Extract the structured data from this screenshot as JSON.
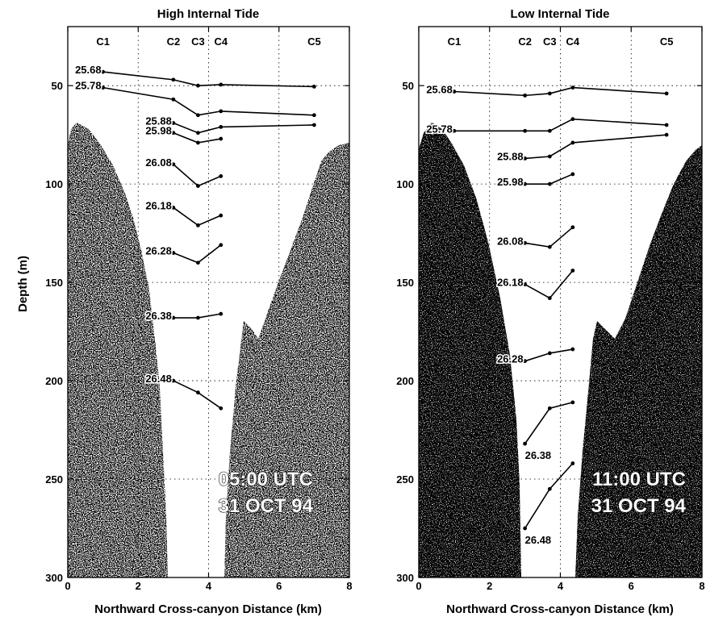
{
  "figure": {
    "ylabel": "Depth (m)"
  },
  "chart_data": [
    {
      "type": "line",
      "title": "High Internal Tide",
      "xlabel": "Northward Cross-canyon Distance (km)",
      "ylabel": "Depth (m)",
      "xlim": [
        0,
        8
      ],
      "ylim": [
        300,
        20
      ],
      "y_inverted": true,
      "xticks": [
        0,
        2,
        4,
        6,
        8
      ],
      "yticks": [
        50,
        100,
        150,
        200,
        250,
        300
      ],
      "grid": "dotted",
      "stations": [
        {
          "name": "C1",
          "x": 1.0
        },
        {
          "name": "C2",
          "x": 3.0
        },
        {
          "name": "C3",
          "x": 3.7
        },
        {
          "name": "C4",
          "x": 4.35
        },
        {
          "name": "C5",
          "x": 7.0
        }
      ],
      "annotation": [
        "05:00 UTC",
        "31 OCT 94"
      ],
      "series": [
        {
          "name": "25.68",
          "x": [
            1.0,
            3.0,
            3.7,
            4.35,
            7.0
          ],
          "y": [
            43,
            47,
            50,
            49.5,
            50.5
          ]
        },
        {
          "name": "25.78",
          "x": [
            1.0,
            3.0,
            3.7,
            4.35,
            7.0
          ],
          "y": [
            51,
            57,
            65,
            63,
            65
          ]
        },
        {
          "name": "25.88",
          "x": [
            3.0,
            3.7,
            4.35,
            7.0
          ],
          "y": [
            69,
            74,
            71,
            70
          ]
        },
        {
          "name": "25.98",
          "x": [
            3.0,
            3.7,
            4.35
          ],
          "y": [
            74,
            79,
            77
          ]
        },
        {
          "name": "26.08",
          "x": [
            3.0,
            3.7,
            4.35
          ],
          "y": [
            90,
            101,
            96
          ]
        },
        {
          "name": "26.18",
          "x": [
            3.0,
            3.7,
            4.35
          ],
          "y": [
            112,
            121,
            116
          ]
        },
        {
          "name": "26.28",
          "x": [
            3.0,
            3.7,
            4.35
          ],
          "y": [
            135,
            140,
            131
          ]
        },
        {
          "name": "26.38",
          "x": [
            3.0,
            3.7,
            4.35
          ],
          "y": [
            168,
            168,
            166
          ]
        },
        {
          "name": "26.48",
          "x": [
            3.0,
            3.7,
            4.35
          ],
          "y": [
            200,
            206,
            214
          ]
        }
      ]
    },
    {
      "type": "line",
      "title": "Low Internal Tide",
      "xlabel": "Northward Cross-canyon Distance (km)",
      "ylabel": "",
      "xlim": [
        0,
        8
      ],
      "ylim": [
        300,
        20
      ],
      "y_inverted": true,
      "xticks": [
        0,
        2,
        4,
        6,
        8
      ],
      "yticks": [
        50,
        100,
        150,
        200,
        250,
        300
      ],
      "grid": "dotted",
      "stations": [
        {
          "name": "C1",
          "x": 1.0
        },
        {
          "name": "C2",
          "x": 3.0
        },
        {
          "name": "C3",
          "x": 3.7
        },
        {
          "name": "C4",
          "x": 4.35
        },
        {
          "name": "C5",
          "x": 7.0
        }
      ],
      "annotation": [
        "11:00 UTC",
        "31 OCT 94"
      ],
      "series": [
        {
          "name": "25.68",
          "x": [
            1.0,
            3.0,
            3.7,
            4.35,
            7.0
          ],
          "y": [
            53,
            55,
            54,
            51,
            54
          ]
        },
        {
          "name": "25.78",
          "x": [
            1.0,
            3.0,
            3.7,
            4.35,
            7.0
          ],
          "y": [
            73,
            73,
            73,
            67,
            70
          ]
        },
        {
          "name": "25.88",
          "x": [
            3.0,
            3.7,
            4.35,
            7.0
          ],
          "y": [
            87,
            86,
            79,
            75
          ]
        },
        {
          "name": "25.98",
          "x": [
            3.0,
            3.7,
            4.35
          ],
          "y": [
            100,
            100,
            95
          ]
        },
        {
          "name": "26.08",
          "x": [
            3.0,
            3.7,
            4.35
          ],
          "y": [
            130,
            132,
            122
          ]
        },
        {
          "name": "26.18",
          "x": [
            3.0,
            3.7,
            4.35
          ],
          "y": [
            151,
            158,
            144
          ]
        },
        {
          "name": "26.28",
          "x": [
            3.0,
            3.7,
            4.35
          ],
          "y": [
            190,
            186,
            184
          ]
        },
        {
          "name": "26.38",
          "x": [
            3.0,
            3.7,
            4.35
          ],
          "y": [
            232,
            214,
            211
          ]
        },
        {
          "name": "26.48",
          "x": [
            3.0,
            3.7,
            4.35
          ],
          "y": [
            275,
            255,
            242
          ]
        }
      ]
    }
  ]
}
